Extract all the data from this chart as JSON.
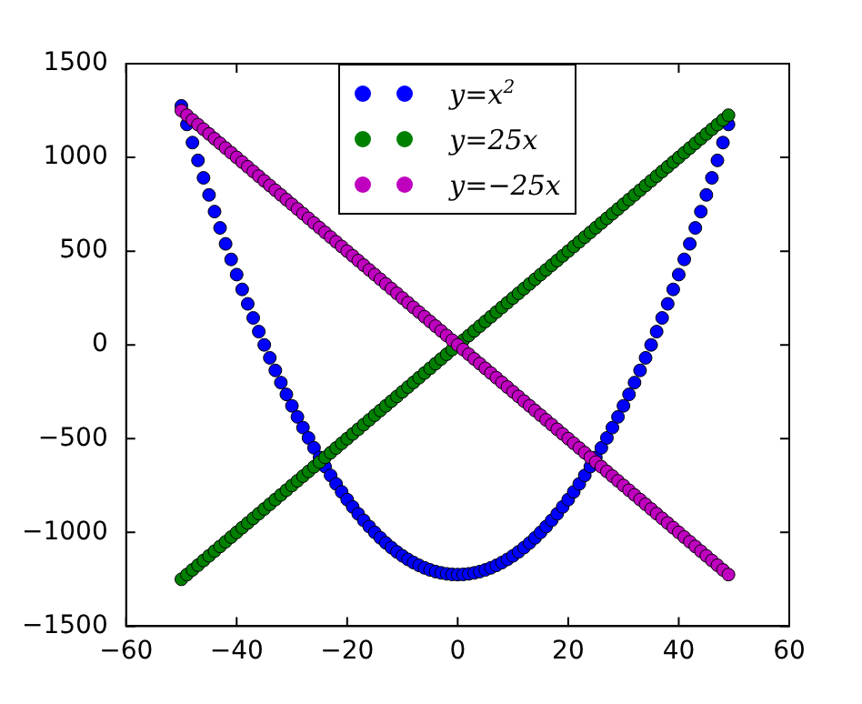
{
  "chart_data": {
    "type": "scatter",
    "marker": "circle",
    "legend": "top",
    "grid": false,
    "xlim": [
      -60,
      60
    ],
    "xticks": [
      {
        "value": -60,
        "label": "−60"
      },
      {
        "value": -40,
        "label": "−40"
      },
      {
        "value": -20,
        "label": "−20"
      },
      0,
      20,
      40,
      60
    ],
    "ylim": [
      -1500,
      1500
    ],
    "yticks": [
      {
        "value": -1500,
        "label": "−1500"
      },
      {
        "value": -1000,
        "label": "−1000"
      },
      {
        "value": -500,
        "label": "−500"
      },
      0,
      500,
      1000,
      1500
    ],
    "x": [
      -50,
      -49,
      -48,
      -47,
      -46,
      -45,
      -44,
      -43,
      -42,
      -41,
      -40,
      -39,
      -38,
      -37,
      -36,
      -35,
      -34,
      -33,
      -32,
      -31,
      -30,
      -29,
      -28,
      -27,
      -26,
      -25,
      -24,
      -23,
      -22,
      -21,
      -20,
      -19,
      -18,
      -17,
      -16,
      -15,
      -14,
      -13,
      -12,
      -11,
      -10,
      -9,
      -8,
      -7,
      -6,
      -5,
      -4,
      -3,
      -2,
      -1,
      0,
      1,
      2,
      3,
      4,
      5,
      6,
      7,
      8,
      9,
      10,
      11,
      12,
      13,
      14,
      15,
      16,
      17,
      18,
      19,
      20,
      21,
      22,
      23,
      24,
      25,
      26,
      27,
      28,
      29,
      30,
      31,
      32,
      33,
      34,
      35,
      36,
      37,
      38,
      39,
      40,
      41,
      42,
      43,
      44,
      45,
      46,
      47,
      48,
      49
    ],
    "series": [
      {
        "name": "y=x$^{2}$",
        "color": "#0000ff",
        "values": [
          1275,
          1176,
          1079,
          984,
          891,
          800,
          711,
          624,
          539,
          456,
          375,
          296,
          219,
          144,
          71,
          0,
          -69,
          -136,
          -201,
          -264,
          -325,
          -384,
          -441,
          -496,
          -549,
          -600,
          -649,
          -696,
          -741,
          -784,
          -825,
          -864,
          -901,
          -936,
          -969,
          -1000,
          -1029,
          -1056,
          -1081,
          -1104,
          -1125,
          -1144,
          -1161,
          -1176,
          -1189,
          -1200,
          -1209,
          -1216,
          -1221,
          -1224,
          -1225,
          -1224,
          -1221,
          -1216,
          -1209,
          -1200,
          -1189,
          -1176,
          -1161,
          -1144,
          -1125,
          -1104,
          -1081,
          -1056,
          -1029,
          -1000,
          -969,
          -936,
          -901,
          -864,
          -825,
          -784,
          -741,
          -696,
          -649,
          -600,
          -549,
          -496,
          -441,
          -384,
          -325,
          -264,
          -201,
          -136,
          -69,
          0,
          71,
          144,
          219,
          296,
          375,
          456,
          539,
          624,
          711,
          800,
          891,
          984,
          1079,
          1176
        ]
      },
      {
        "name": "y=25x",
        "color": "#008000",
        "values": [
          -1250,
          -1225,
          -1200,
          -1175,
          -1150,
          -1125,
          -1100,
          -1075,
          -1050,
          -1025,
          -1000,
          -975,
          -950,
          -925,
          -900,
          -875,
          -850,
          -825,
          -800,
          -775,
          -750,
          -725,
          -700,
          -675,
          -650,
          -625,
          -600,
          -575,
          -550,
          -525,
          -500,
          -475,
          -450,
          -425,
          -400,
          -375,
          -350,
          -325,
          -300,
          -275,
          -250,
          -225,
          -200,
          -175,
          -150,
          -125,
          -100,
          -75,
          -50,
          -25,
          null,
          25,
          50,
          75,
          100,
          125,
          150,
          175,
          200,
          225,
          250,
          275,
          300,
          325,
          350,
          375,
          400,
          425,
          450,
          475,
          500,
          525,
          550,
          575,
          600,
          625,
          650,
          675,
          700,
          725,
          750,
          775,
          800,
          825,
          850,
          875,
          900,
          925,
          950,
          975,
          1000,
          1025,
          1050,
          1075,
          1100,
          1125,
          1150,
          1175,
          1200,
          1225
        ]
      },
      {
        "name": "y=−25x",
        "color": "#bf00bf",
        "values": [
          1250,
          1225,
          1200,
          1175,
          1150,
          1125,
          1100,
          1075,
          1050,
          1025,
          1000,
          975,
          950,
          925,
          900,
          875,
          850,
          825,
          800,
          775,
          750,
          725,
          700,
          675,
          650,
          625,
          600,
          575,
          550,
          525,
          500,
          475,
          450,
          425,
          400,
          375,
          350,
          325,
          300,
          275,
          250,
          225,
          200,
          175,
          150,
          125,
          100,
          75,
          50,
          25,
          0,
          -25,
          -50,
          -75,
          -100,
          -125,
          -150,
          -175,
          -200,
          -225,
          -250,
          -275,
          -300,
          -325,
          -350,
          -375,
          -400,
          -425,
          -450,
          -475,
          -500,
          -525,
          -550,
          -575,
          -600,
          -625,
          -650,
          -675,
          -700,
          -725,
          -750,
          -775,
          -800,
          -825,
          -850,
          -875,
          -900,
          -925,
          -950,
          -975,
          -1000,
          -1025,
          -1050,
          -1075,
          -1100,
          -1125,
          -1150,
          -1175,
          -1200,
          -1225
        ]
      }
    ]
  }
}
